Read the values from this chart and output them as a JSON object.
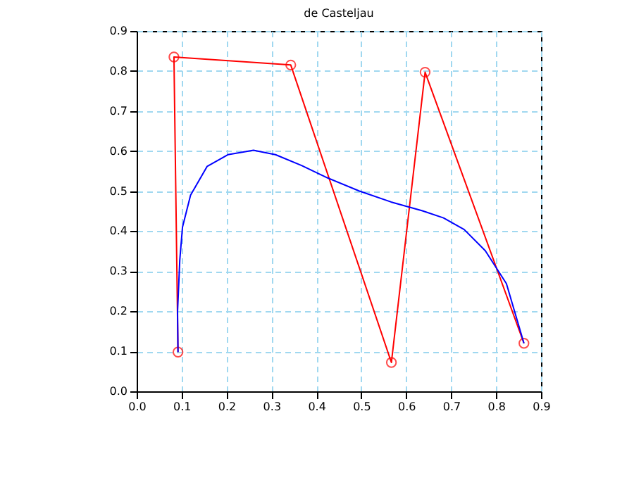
{
  "chart_data": {
    "type": "line",
    "title": "de Casteljau",
    "series": [
      {
        "color": "#ff0000",
        "marker": "circle",
        "x": [
          0.092,
          0.083,
          0.343,
          0.567,
          0.642,
          0.862
        ],
        "values": [
          0.098,
          0.835,
          0.815,
          0.072,
          0.797,
          0.12
        ]
      },
      {
        "color": "#0000ff",
        "marker": "none",
        "x": [
          0.092,
          0.091,
          0.096,
          0.102,
          0.12,
          0.157,
          0.203,
          0.26,
          0.309,
          0.367,
          0.425,
          0.496,
          0.566,
          0.636,
          0.683,
          0.729,
          0.776,
          0.823,
          0.862
        ],
        "values": [
          0.098,
          0.199,
          0.328,
          0.41,
          0.49,
          0.562,
          0.591,
          0.602,
          0.591,
          0.564,
          0.533,
          0.5,
          0.473,
          0.451,
          0.433,
          0.404,
          0.351,
          0.269,
          0.12
        ]
      }
    ],
    "xlim": [
      0,
      0.9
    ],
    "ylim": [
      0,
      0.9
    ],
    "xticks": [
      {
        "value": 0,
        "label": "0.0"
      },
      0.1,
      0.2,
      0.3,
      0.4,
      0.5,
      0.6,
      0.7,
      0.8,
      0.9
    ],
    "yticks": [
      {
        "value": 0,
        "label": "0.0"
      },
      0.1,
      0.2,
      0.3,
      0.4,
      0.5,
      0.6,
      0.7,
      0.8,
      0.9
    ],
    "grid": true,
    "line_style": "solid"
  }
}
